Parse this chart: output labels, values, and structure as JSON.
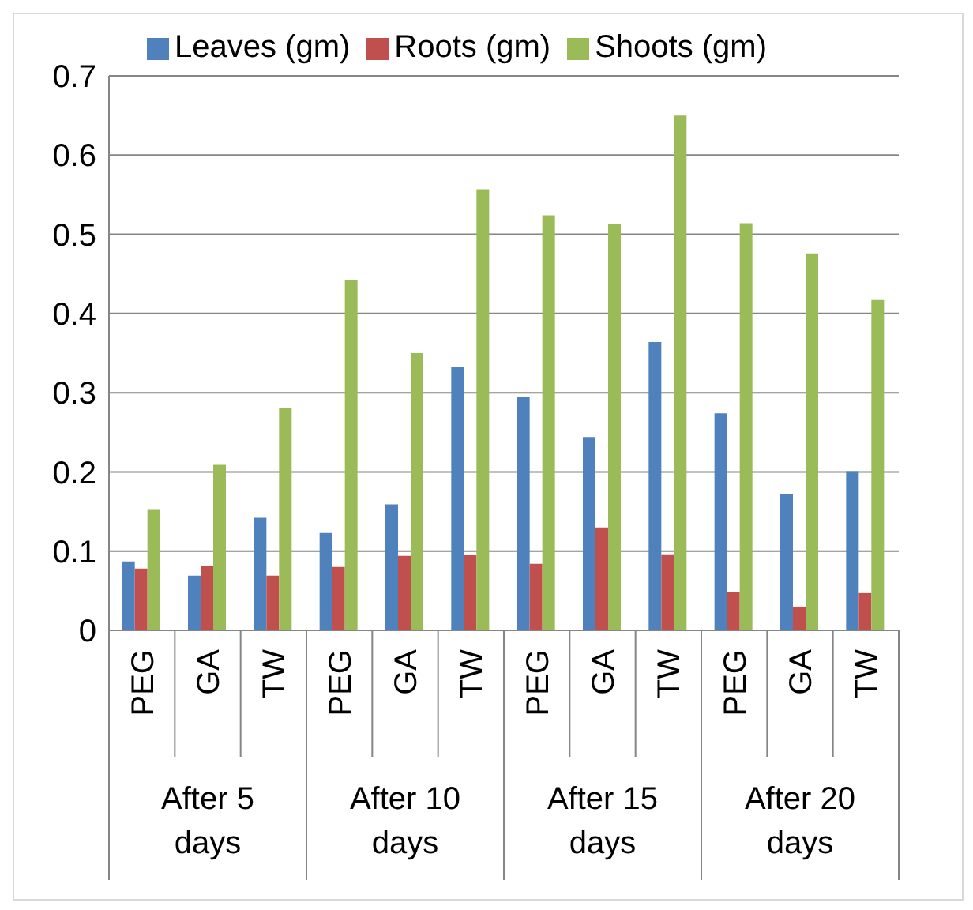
{
  "chart_data": {
    "type": "bar",
    "categories": [
      "PEG",
      "GA",
      "TW",
      "PEG",
      "GA",
      "TW",
      "PEG",
      "GA",
      "TW",
      "PEG",
      "GA",
      "TW"
    ],
    "annotations": [
      "After 5 days",
      "After 10 days",
      "After 15 days",
      "After 20 days"
    ],
    "series": [
      {
        "name": "Leaves (gm)",
        "color": "#4f81bd",
        "values": [
          0.087,
          0.069,
          0.142,
          0.123,
          0.159,
          0.333,
          0.295,
          0.244,
          0.364,
          0.274,
          0.172,
          0.201
        ]
      },
      {
        "name": "Roots (gm)",
        "color": "#c0504d",
        "values": [
          0.078,
          0.081,
          0.069,
          0.08,
          0.094,
          0.095,
          0.084,
          0.13,
          0.096,
          0.048,
          0.03,
          0.047
        ]
      },
      {
        "name": "Shoots (gm)",
        "color": "#9bbb59",
        "values": [
          0.153,
          0.209,
          0.281,
          0.442,
          0.35,
          0.557,
          0.524,
          0.513,
          0.65,
          0.514,
          0.476,
          0.417
        ]
      }
    ],
    "ylim": [
      0,
      0.7
    ],
    "yticks": [
      0,
      0.1,
      0.2,
      0.3,
      0.4,
      0.5,
      0.6,
      0.7
    ],
    "grid": "y",
    "legend": "top"
  }
}
